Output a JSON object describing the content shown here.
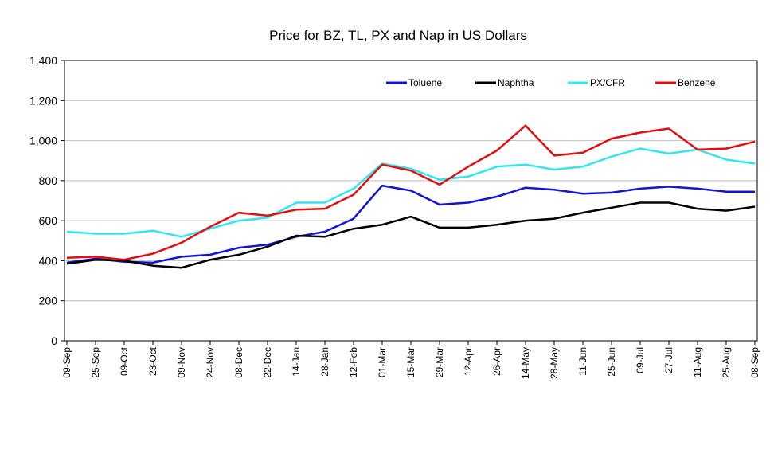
{
  "chart_data": {
    "type": "line",
    "title": "Price for BZ, TL, PX and Nap in US Dollars",
    "xlabel": "",
    "ylabel": "",
    "ylim": [
      0,
      1400
    ],
    "yticks": [
      0,
      200,
      400,
      600,
      800,
      1000,
      1200,
      1400
    ],
    "ytick_labels": [
      "0",
      "200",
      "400",
      "600",
      "800",
      "1,000",
      "1,200",
      "1,400"
    ],
    "xtick_labels": [
      "09-Sep",
      "25-Sep",
      "09-Oct",
      "23-Oct",
      "09-Nov",
      "24-Nov",
      "08-Dec",
      "22-Dec",
      "14-Jan",
      "28-Jan",
      "12-Feb",
      "01-Mar",
      "15-Mar",
      "29-Mar",
      "12-Apr",
      "26-Apr",
      "14-May",
      "28-May",
      "11-Jun",
      "25-Jun",
      "09-Jul",
      "27-Jul",
      "11-Aug",
      "25-Aug",
      "08-Sep"
    ],
    "grid": true,
    "legend_position": "top-right",
    "series": [
      {
        "name": "Toluene",
        "color": "#1414d2",
        "values": [
          390,
          410,
          395,
          390,
          420,
          430,
          465,
          480,
          520,
          545,
          610,
          775,
          750,
          680,
          690,
          720,
          765,
          755,
          735,
          740,
          760,
          770,
          760,
          745,
          745
        ]
      },
      {
        "name": "Naphtha",
        "color": "#000000",
        "values": [
          385,
          405,
          400,
          375,
          365,
          405,
          430,
          470,
          525,
          520,
          560,
          580,
          620,
          565,
          565,
          580,
          600,
          610,
          640,
          665,
          690,
          690,
          660,
          650,
          670
        ]
      },
      {
        "name": "PX/CFR",
        "color": "#33e5ee",
        "values": [
          545,
          535,
          535,
          550,
          520,
          560,
          600,
          615,
          690,
          690,
          760,
          885,
          860,
          805,
          820,
          870,
          880,
          855,
          870,
          920,
          960,
          935,
          955,
          905,
          885
        ]
      },
      {
        "name": "Benzene",
        "color": "#e01010",
        "values": [
          415,
          420,
          405,
          435,
          490,
          570,
          640,
          625,
          655,
          660,
          730,
          880,
          850,
          780,
          870,
          950,
          1075,
          925,
          940,
          1010,
          1040,
          1060,
          955,
          960,
          995
        ]
      }
    ]
  }
}
